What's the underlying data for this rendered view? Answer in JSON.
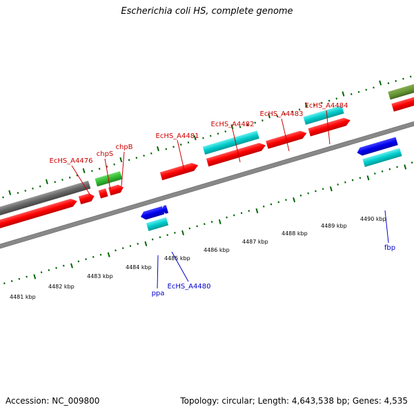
{
  "title": "Escherichia coli HS, complete genome",
  "footer": {
    "accession": "Accession: NC_009800",
    "summary": "Topology: circular; Length: 4,643,538 bp; Genes: 4,535"
  },
  "colors": {
    "red": "#ff0000",
    "cyan": "#00cccc",
    "green": "#33cc33",
    "blue": "#0000ee",
    "gray": "#666666",
    "olive": "#669933",
    "tick_green": "#006600",
    "label_red": "#cc0000",
    "label_blue": "#0000cc"
  },
  "scale_labels": [
    "4481 kbp",
    "4482 kbp",
    "4483 kbp",
    "4484 kbp",
    "4485 kbp",
    "4486 kbp",
    "4487 kbp",
    "4488 kbp",
    "4489 kbp",
    "4490 kbp"
  ],
  "gene_labels_top": [
    "EcHS_A4476",
    "chpS",
    "chpB",
    "EcHS_A4481",
    "EcHS_A4482",
    "EcHS_A4483",
    "EcHS_A4484"
  ],
  "gene_labels_bottom": [
    "ppa",
    "EcHS_A4480",
    "fbp"
  ]
}
